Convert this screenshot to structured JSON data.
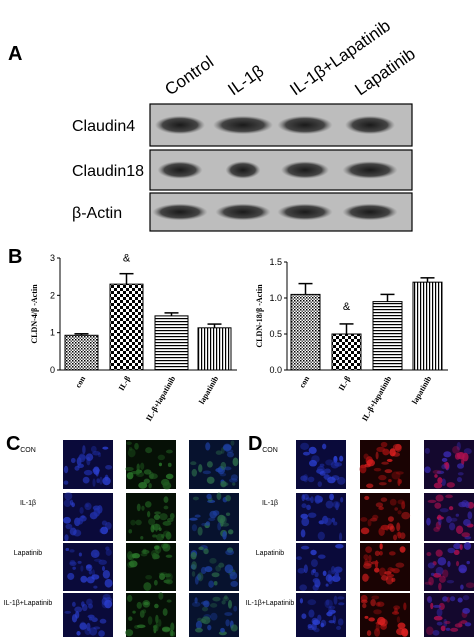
{
  "panel_a": {
    "label": "A",
    "lanes": [
      "Control",
      "IL-1β",
      "IL-1β+Lapatinib",
      "Lapatinib"
    ],
    "rows": [
      "Claudin4",
      "Claudin18",
      "β-Actin"
    ]
  },
  "panel_b": {
    "label": "B"
  },
  "chart_data": [
    {
      "type": "bar",
      "ylabel": "CLDN-4/β -Actin",
      "annotation": "&",
      "categories": [
        "con",
        "IL-β",
        "IL-β+lapatinib",
        "lapatinib"
      ],
      "values": [
        0.93,
        2.3,
        1.45,
        1.13
      ],
      "errors": [
        0.04,
        0.28,
        0.08,
        0.1
      ],
      "color": "#000000",
      "ylim": [
        0,
        3
      ],
      "yticks": [
        0,
        1,
        2,
        3
      ]
    },
    {
      "type": "bar",
      "ylabel": "CLDN-18/β -Actin",
      "annotation": "&",
      "categories": [
        "con",
        "IL-β",
        "IL-β+lapatinib",
        "lapatinib"
      ],
      "values": [
        1.05,
        0.5,
        0.95,
        1.22
      ],
      "errors": [
        0.15,
        0.14,
        0.1,
        0.06
      ],
      "color": "#000000",
      "ylim": [
        0,
        1.5
      ],
      "yticks": [
        {
          "value": 0,
          "label": "0.0"
        },
        0.5,
        {
          "value": 1,
          "label": "1.0"
        },
        1.5
      ]
    }
  ],
  "panel_c": {
    "label": "C",
    "rows": [
      "CON",
      "IL-1β",
      "Lapatinib",
      "IL-1β+Lapatinib"
    ]
  },
  "panel_d": {
    "label": "D",
    "rows": [
      "CON",
      "IL-1β",
      "Lapatinib",
      "IL-1β+Lapatinib"
    ]
  }
}
